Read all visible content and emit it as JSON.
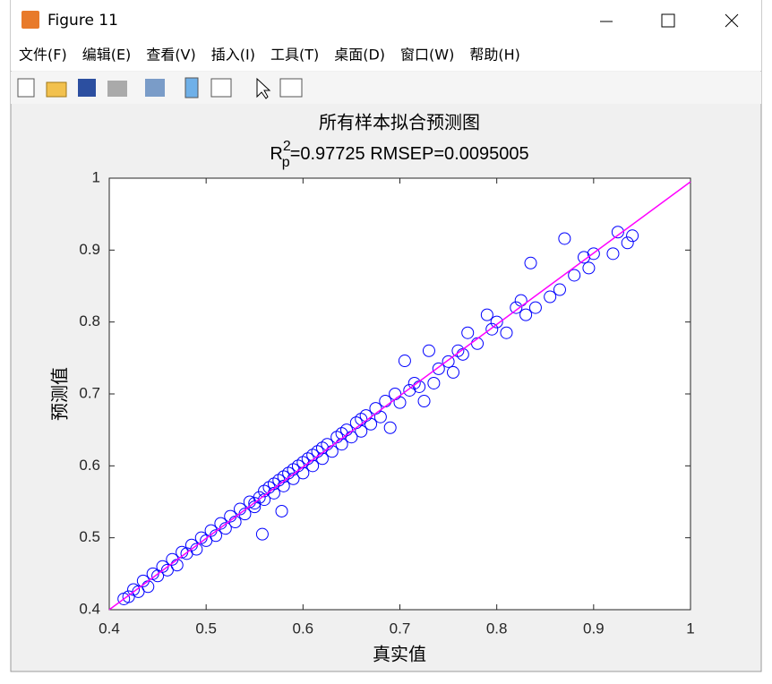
{
  "window": {
    "title": "Figure 11",
    "menu": [
      "文件(F)",
      "编辑(E)",
      "查看(V)",
      "插入(I)",
      "工具(T)",
      "桌面(D)",
      "窗口(W)",
      "帮助(H)"
    ]
  },
  "chart_data": {
    "type": "scatter",
    "title": "所有样本拟合预测图",
    "subtitle": {
      "base": "R",
      "sup": "2",
      "sub": "p",
      "text": "=0.97725  RMSEP=0.0095005"
    },
    "x_label": "真实值",
    "y_label": "预测值",
    "xlim": [
      0.4,
      1
    ],
    "ylim": [
      0.4,
      1
    ],
    "xticks": [
      0.4,
      0.5,
      0.6,
      0.7,
      0.8,
      0.9,
      1
    ],
    "yticks": [
      0.4,
      0.5,
      0.6,
      0.7,
      0.8,
      0.9,
      1
    ],
    "series": [
      {
        "color": "#0000ff",
        "marker": "circle",
        "x": [
          0.415,
          0.42,
          0.425,
          0.43,
          0.435,
          0.44,
          0.445,
          0.45,
          0.455,
          0.46,
          0.465,
          0.47,
          0.475,
          0.48,
          0.485,
          0.49,
          0.495,
          0.5,
          0.505,
          0.51,
          0.515,
          0.52,
          0.525,
          0.53,
          0.535,
          0.54,
          0.545,
          0.55,
          0.555,
          0.558,
          0.56,
          0.565,
          0.57,
          0.575,
          0.578,
          0.58,
          0.585,
          0.59,
          0.595,
          0.6,
          0.605,
          0.61,
          0.615,
          0.62,
          0.625,
          0.63,
          0.635,
          0.64,
          0.645,
          0.65,
          0.655,
          0.66,
          0.665,
          0.67,
          0.675,
          0.68,
          0.685,
          0.69,
          0.695,
          0.7,
          0.705,
          0.71,
          0.715,
          0.72,
          0.725,
          0.73,
          0.735,
          0.74,
          0.75,
          0.755,
          0.76,
          0.765,
          0.77,
          0.78,
          0.79,
          0.795,
          0.8,
          0.81,
          0.82,
          0.825,
          0.83,
          0.835,
          0.84,
          0.855,
          0.865,
          0.87,
          0.88,
          0.89,
          0.895,
          0.9,
          0.92,
          0.925,
          0.935,
          0.94,
          0.56,
          0.58,
          0.6,
          0.62,
          0.64,
          0.66,
          0.55,
          0.57,
          0.59,
          0.61
        ],
        "values": [
          0.415,
          0.418,
          0.428,
          0.425,
          0.44,
          0.432,
          0.45,
          0.447,
          0.46,
          0.455,
          0.47,
          0.462,
          0.48,
          0.478,
          0.49,
          0.484,
          0.5,
          0.496,
          0.51,
          0.503,
          0.52,
          0.513,
          0.53,
          0.522,
          0.54,
          0.533,
          0.55,
          0.543,
          0.556,
          0.505,
          0.553,
          0.57,
          0.562,
          0.58,
          0.537,
          0.572,
          0.59,
          0.582,
          0.6,
          0.59,
          0.61,
          0.6,
          0.62,
          0.61,
          0.63,
          0.62,
          0.64,
          0.63,
          0.65,
          0.64,
          0.66,
          0.648,
          0.67,
          0.658,
          0.68,
          0.668,
          0.69,
          0.653,
          0.7,
          0.688,
          0.746,
          0.705,
          0.715,
          0.71,
          0.69,
          0.76,
          0.715,
          0.735,
          0.745,
          0.73,
          0.76,
          0.755,
          0.785,
          0.77,
          0.81,
          0.79,
          0.8,
          0.785,
          0.82,
          0.83,
          0.81,
          0.882,
          0.82,
          0.835,
          0.845,
          0.916,
          0.865,
          0.89,
          0.875,
          0.895,
          0.895,
          0.925,
          0.91,
          0.92,
          0.565,
          0.585,
          0.605,
          0.625,
          0.645,
          0.665,
          0.548,
          0.575,
          0.595,
          0.615
        ]
      },
      {
        "color": "#ff00ff",
        "marker": "line",
        "x": [
          0.4,
          1
        ],
        "values": [
          0.4,
          0.995
        ]
      }
    ]
  }
}
